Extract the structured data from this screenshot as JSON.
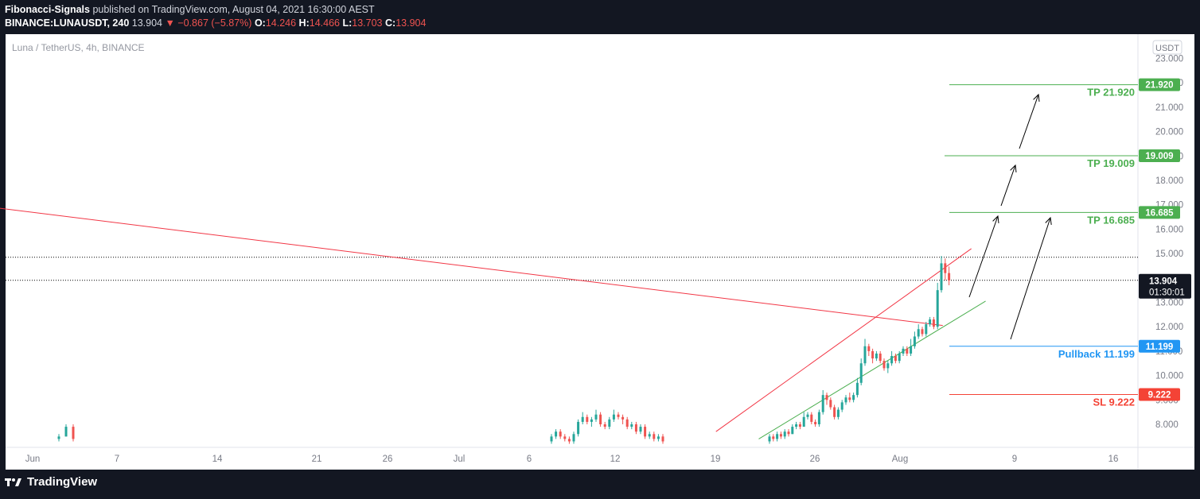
{
  "header": {
    "author": "Fibonacci-Signals",
    "published": "published on TradingView.com, August 04, 2021 16:30:00 AEST",
    "symbol": "BINANCE:LUNAUSDT, 240",
    "last": "13.904",
    "change": "▼ −0.867 (−5.87%)",
    "o_label": "O:",
    "o_value": "14.246",
    "h_label": "H:",
    "h_value": "14.466",
    "l_label": "L:",
    "l_value": "13.703",
    "c_label": "C:",
    "c_value": "13.904"
  },
  "chart_title": "Luna / TetherUS, 4h, BINANCE",
  "currency_badge": "USDT",
  "footer": {
    "brand": "TradingView"
  },
  "colors": {
    "background": "#ffffff",
    "up": "#26a69a",
    "down": "#ef5350",
    "tp": "#4caf50",
    "pullback": "#2196f3",
    "sl": "#f44336",
    "trendline": "#f23645",
    "channel_lower": "#4caf50",
    "arrows": "#000000"
  },
  "chart_data": {
    "type": "candlestick",
    "ylim": [
      7.4,
      23.4
    ],
    "y_ticks": [
      8,
      9,
      10,
      11,
      12,
      13,
      14,
      15,
      16,
      17,
      18,
      19,
      20,
      21,
      22,
      23
    ],
    "y_tick_labels": [
      "8.000",
      "9.000",
      "10.000",
      "11.000",
      "12.000",
      "13.000",
      "14.000",
      "15.000",
      "16.000",
      "17.000",
      "18.000",
      "19.000",
      "20.000",
      "21.000",
      "22.000",
      "23.000"
    ],
    "x_ticks": [
      "Jun",
      "7",
      "14",
      "21",
      "26",
      "Jul",
      "6",
      "12",
      "19",
      "26",
      "Aug",
      "9",
      "16"
    ],
    "levels": [
      {
        "name": "tp3",
        "label": "TP 21.920",
        "value": 21.92,
        "badge": "21.920",
        "color": "#4caf50"
      },
      {
        "name": "tp2",
        "label": "TP 19.009",
        "value": 19.009,
        "badge": "19.009",
        "color": "#4caf50"
      },
      {
        "name": "tp1",
        "label": "TP 16.685",
        "value": 16.685,
        "badge": "16.685",
        "color": "#4caf50"
      },
      {
        "name": "pullback",
        "label": "Pullback 11.199",
        "value": 11.199,
        "badge": "11.199",
        "color": "#2196f3"
      },
      {
        "name": "sl",
        "label": "SL 9.222",
        "value": 9.222,
        "badge": "9.222",
        "color": "#f44336"
      }
    ],
    "last_price": {
      "value": 13.904,
      "label": "13.904",
      "countdown": "01:30:01"
    },
    "high_line": 14.85,
    "candles_jun": [
      [
        7.4,
        7.5,
        7.3,
        7.6
      ],
      [
        7.5,
        7.9,
        7.5,
        8.0
      ],
      [
        7.9,
        7.4,
        7.3,
        8.0
      ]
    ],
    "candles_jul": [
      [
        7.3,
        7.5,
        7.2,
        7.6
      ],
      [
        7.5,
        7.7,
        7.4,
        7.8
      ],
      [
        7.7,
        7.5,
        7.4,
        7.8
      ],
      [
        7.5,
        7.4,
        7.3,
        7.6
      ],
      [
        7.4,
        7.3,
        7.2,
        7.5
      ],
      [
        7.3,
        7.6,
        7.2,
        7.7
      ],
      [
        7.6,
        8.1,
        7.5,
        8.2
      ],
      [
        8.1,
        8.3,
        8.0,
        8.5
      ],
      [
        8.3,
        8.1,
        8.0,
        8.4
      ],
      [
        8.1,
        8.2,
        7.9,
        8.3
      ],
      [
        8.2,
        8.4,
        8.1,
        8.6
      ],
      [
        8.4,
        8.0,
        7.9,
        8.5
      ],
      [
        8.0,
        7.9,
        7.8,
        8.1
      ],
      [
        7.9,
        8.2,
        7.8,
        8.3
      ],
      [
        8.2,
        8.4,
        8.1,
        8.6
      ],
      [
        8.4,
        8.3,
        8.2,
        8.5
      ],
      [
        8.3,
        8.2,
        8.0,
        8.4
      ],
      [
        8.2,
        7.9,
        7.8,
        8.3
      ],
      [
        7.9,
        8.0,
        7.8,
        8.1
      ],
      [
        8.0,
        7.7,
        7.6,
        8.1
      ],
      [
        7.7,
        7.9,
        7.6,
        8.0
      ],
      [
        7.9,
        7.5,
        7.4,
        8.0
      ],
      [
        7.5,
        7.6,
        7.4,
        7.7
      ],
      [
        7.6,
        7.4,
        7.3,
        7.7
      ],
      [
        7.4,
        7.5,
        7.3,
        7.6
      ],
      [
        7.5,
        7.3,
        7.2,
        7.6
      ]
    ],
    "candles_aug": [
      [
        7.3,
        7.5,
        7.2,
        7.6
      ],
      [
        7.5,
        7.4,
        7.3,
        7.6
      ],
      [
        7.4,
        7.6,
        7.3,
        7.7
      ],
      [
        7.6,
        7.5,
        7.4,
        7.7
      ],
      [
        7.5,
        7.7,
        7.4,
        7.8
      ],
      [
        7.7,
        7.6,
        7.5,
        7.8
      ],
      [
        7.6,
        7.9,
        7.6,
        8.0
      ],
      [
        7.9,
        8.0,
        7.8,
        8.1
      ],
      [
        8.0,
        7.9,
        7.8,
        8.1
      ],
      [
        7.9,
        8.3,
        7.9,
        8.5
      ],
      [
        8.3,
        8.4,
        8.2,
        8.5
      ],
      [
        8.4,
        8.1,
        8.0,
        8.5
      ],
      [
        8.1,
        8.0,
        7.9,
        8.2
      ],
      [
        8.0,
        8.5,
        7.9,
        8.6
      ],
      [
        8.5,
        9.2,
        8.4,
        9.4
      ],
      [
        9.2,
        9.0,
        8.8,
        9.3
      ],
      [
        9.0,
        8.7,
        8.6,
        9.1
      ],
      [
        8.7,
        8.3,
        8.2,
        8.8
      ],
      [
        8.3,
        8.6,
        8.2,
        8.7
      ],
      [
        8.6,
        8.9,
        8.5,
        9.0
      ],
      [
        8.9,
        9.1,
        8.8,
        9.2
      ],
      [
        9.1,
        9.0,
        8.9,
        9.3
      ],
      [
        9.0,
        9.2,
        8.9,
        9.3
      ],
      [
        9.2,
        9.7,
        9.1,
        9.9
      ],
      [
        9.7,
        10.5,
        9.6,
        10.7
      ],
      [
        10.5,
        11.2,
        10.4,
        11.5
      ],
      [
        11.2,
        11.0,
        10.8,
        11.3
      ],
      [
        11.0,
        10.7,
        10.5,
        11.1
      ],
      [
        10.7,
        10.9,
        10.6,
        11.0
      ],
      [
        10.9,
        10.6,
        10.5,
        11.0
      ],
      [
        10.6,
        10.3,
        10.2,
        10.7
      ],
      [
        10.3,
        10.5,
        10.1,
        10.6
      ],
      [
        10.5,
        10.8,
        10.4,
        11.0
      ],
      [
        10.8,
        10.6,
        10.5,
        10.9
      ],
      [
        10.6,
        10.9,
        10.5,
        11.0
      ],
      [
        10.9,
        11.1,
        10.8,
        11.2
      ],
      [
        11.1,
        10.9,
        10.8,
        11.2
      ],
      [
        10.9,
        11.2,
        10.8,
        11.5
      ],
      [
        11.2,
        11.6,
        11.1,
        11.8
      ],
      [
        11.6,
        11.9,
        11.5,
        12.1
      ],
      [
        11.9,
        11.7,
        11.6,
        12.0
      ],
      [
        11.7,
        12.1,
        11.6,
        12.2
      ],
      [
        12.1,
        12.3,
        12.0,
        12.4
      ],
      [
        12.3,
        12.0,
        11.9,
        12.4
      ],
      [
        12.0,
        13.5,
        11.9,
        13.8
      ],
      [
        13.5,
        14.6,
        13.4,
        14.9
      ],
      [
        14.6,
        14.2,
        13.9,
        14.8
      ],
      [
        14.2,
        13.9,
        13.7,
        14.47
      ]
    ],
    "trendlines": [
      {
        "name": "descending-red-trendline",
        "points": [
          [
            "May 25",
            17.2
          ],
          [
            "Aug 4",
            12.05
          ]
        ],
        "color": "#f23645"
      },
      {
        "name": "channel-upper-red",
        "points": [
          [
            "Jul 19",
            7.7
          ],
          [
            "Aug 6",
            15.2
          ]
        ],
        "color": "#f23645"
      },
      {
        "name": "channel-lower-green",
        "points": [
          [
            "Jul 22",
            7.4
          ],
          [
            "Aug 7",
            13.05
          ]
        ],
        "color": "#4caf50"
      }
    ],
    "arrows": [
      {
        "from": [
          1218,
          374
        ],
        "to": [
          1254,
          272
        ]
      },
      {
        "from": [
          1258,
          259
        ],
        "to": [
          1276,
          208
        ]
      },
      {
        "from": [
          1281,
          187
        ],
        "to": [
          1305,
          119
        ]
      },
      {
        "from": [
          1270,
          427
        ],
        "to": [
          1320,
          274
        ]
      }
    ]
  }
}
